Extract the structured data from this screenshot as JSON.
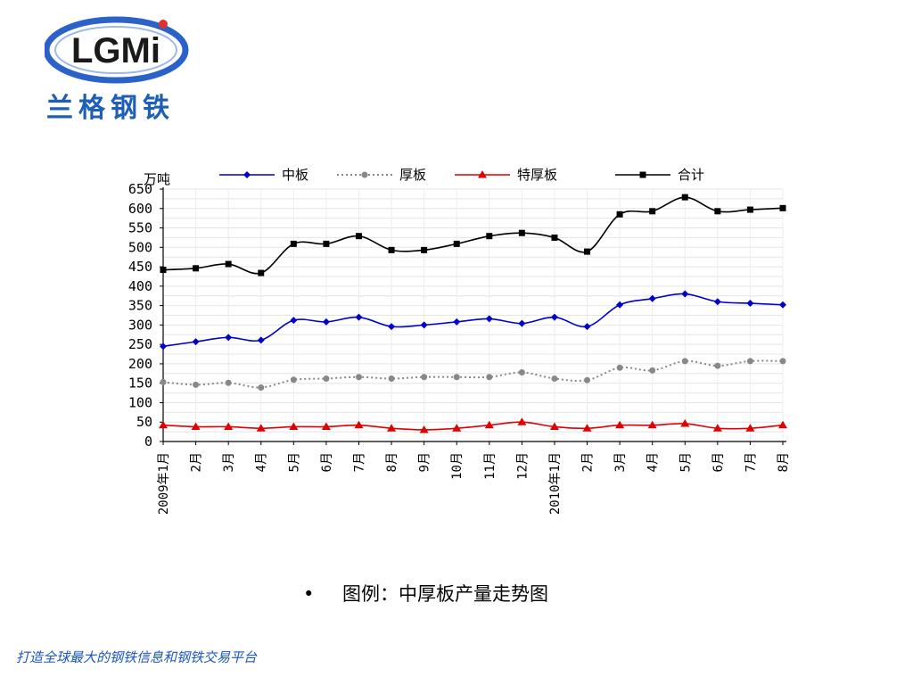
{
  "brand": {
    "logo_text": "LGMi",
    "logo_cn": "兰格钢铁"
  },
  "caption": {
    "bullet": "•",
    "text": "图例：中厚板产量走势图"
  },
  "footer": {
    "text": "打造全球最大的钢铁信息和钢铁交易平台"
  },
  "chart_data": {
    "type": "line",
    "ylabel": "万吨",
    "ylim": [
      0,
      650
    ],
    "ytick_step": 50,
    "grid": true,
    "legend_placement": "top",
    "categories": [
      "1月",
      "2月",
      "3月",
      "4月",
      "5月",
      "6月",
      "7月",
      "8月",
      "9月",
      "10月",
      "11月",
      "12月",
      "1月",
      "2月",
      "3月",
      "4月",
      "5月",
      "6月",
      "7月",
      "8月"
    ],
    "year_labels": [
      {
        "index": 0,
        "text": "2009年"
      },
      {
        "index": 12,
        "text": "2010年"
      }
    ],
    "series": [
      {
        "name": "中板",
        "color": "#0000cc",
        "style": "solid",
        "marker": "diamond",
        "values": [
          245,
          257,
          268,
          261,
          312,
          308,
          320,
          296,
          300,
          308,
          316,
          304,
          320,
          296,
          352,
          368,
          380,
          360,
          356,
          352
        ]
      },
      {
        "name": "厚板",
        "color": "#888888",
        "style": "dotted",
        "marker": "circle",
        "values": [
          153,
          146,
          151,
          139,
          159,
          162,
          166,
          162,
          166,
          166,
          166,
          178,
          162,
          158,
          190,
          183,
          207,
          195,
          207,
          207
        ]
      },
      {
        "name": "特厚板",
        "color": "#e00000",
        "style": "solid",
        "marker": "triangle",
        "values": [
          42,
          38,
          38,
          34,
          38,
          38,
          42,
          34,
          30,
          34,
          42,
          50,
          38,
          34,
          42,
          42,
          46,
          34,
          34,
          42
        ]
      },
      {
        "name": "合计",
        "color": "#000000",
        "style": "solid",
        "marker": "square",
        "values": [
          442,
          446,
          457,
          434,
          509,
          509,
          529,
          493,
          493,
          509,
          529,
          537,
          525,
          489,
          585,
          593,
          629,
          593,
          597,
          601
        ]
      }
    ]
  }
}
